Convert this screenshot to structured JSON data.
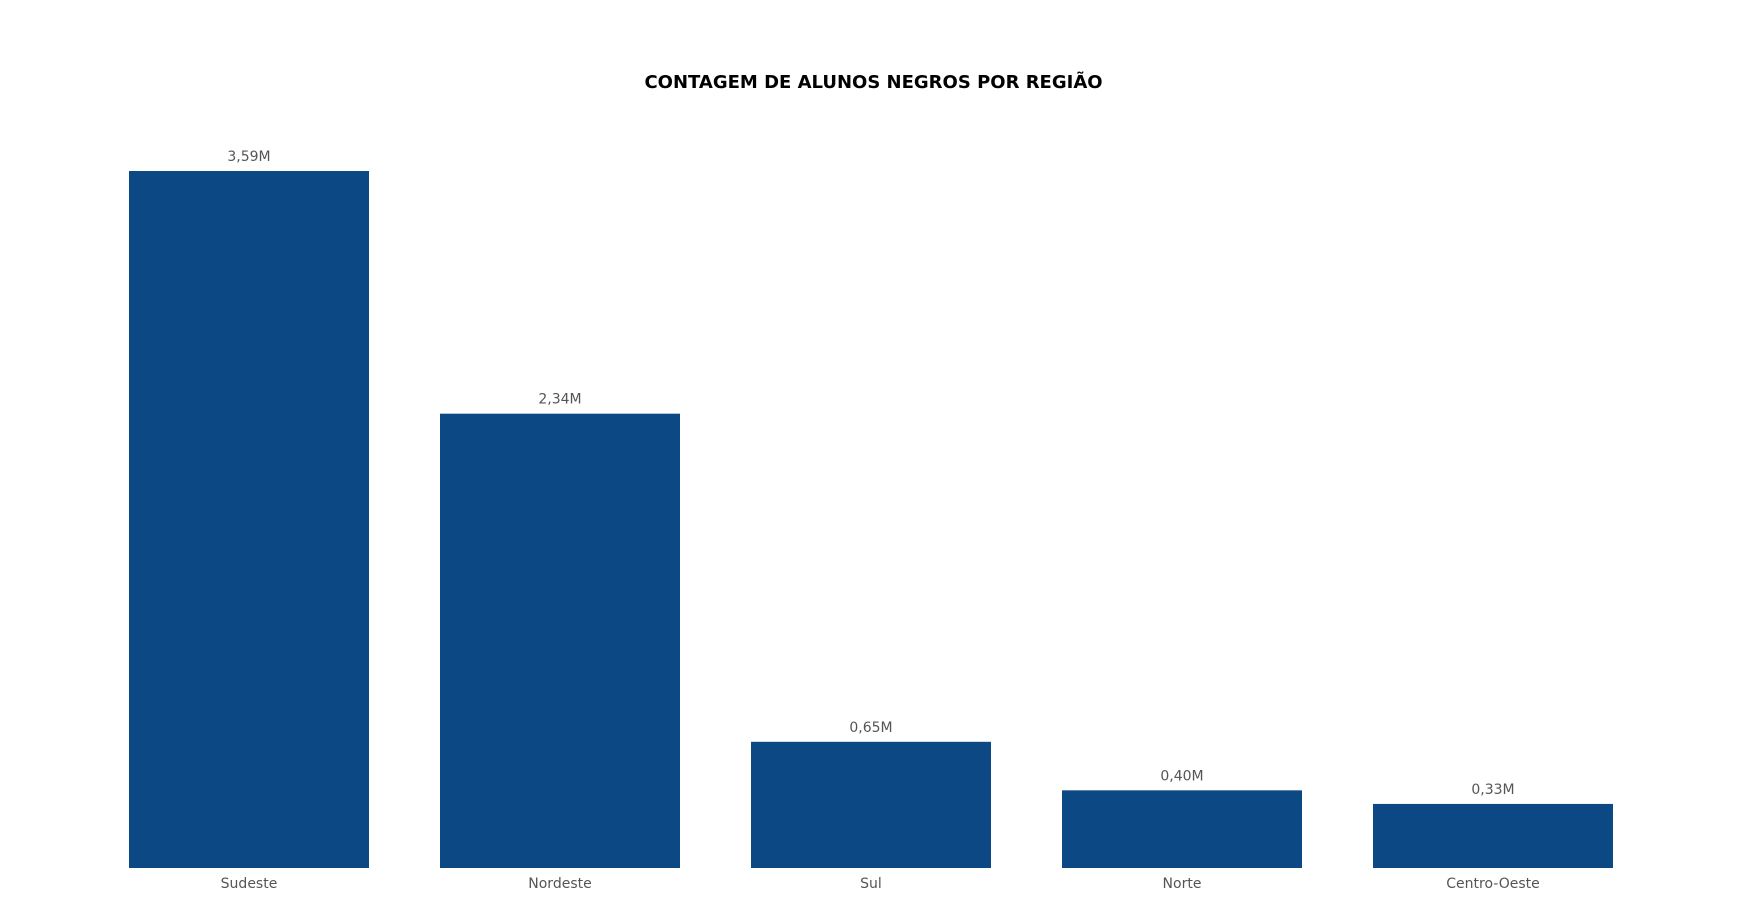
{
  "chart_data": {
    "type": "bar",
    "title": "CONTAGEM DE ALUNOS NEGROS POR REGIÃO",
    "xlabel": "",
    "ylabel": "",
    "categories": [
      "Sudeste",
      "Nordeste",
      "Sul",
      "Norte",
      "Centro-Oeste"
    ],
    "values": [
      3.59,
      2.34,
      0.65,
      0.4,
      0.33
    ],
    "data_labels": [
      "3,59M",
      "2,34M",
      "0,65M",
      "0,40M",
      "0,33M"
    ],
    "ylim": [
      0,
      3.59
    ],
    "grid": false,
    "legend": "none",
    "bar_color": "#0B4884"
  }
}
